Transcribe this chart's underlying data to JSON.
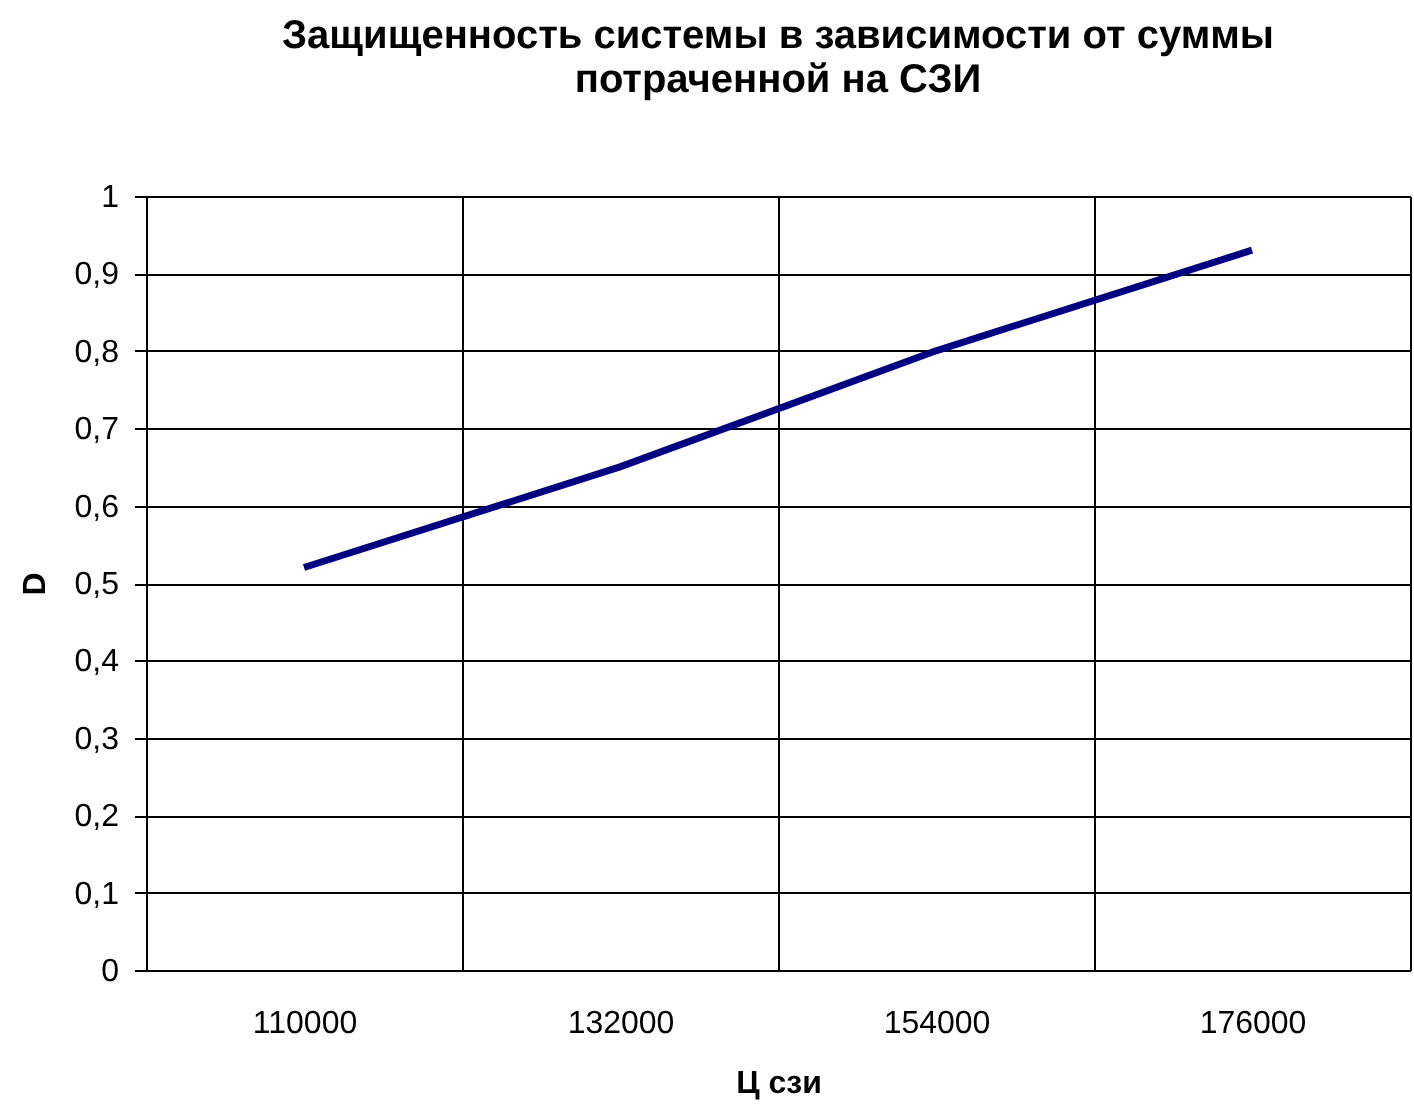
{
  "chart_data": {
    "type": "line",
    "title": [
      "Защищенность системы в зависимости от суммы",
      "потраченной на СЗИ"
    ],
    "xlabel": "Ц сзи",
    "ylabel": "D",
    "categories": [
      "110000",
      "132000",
      "154000",
      "176000"
    ],
    "series": [
      {
        "color": "#000080",
        "values": [
          0.52,
          0.65,
          0.8,
          0.93
        ]
      }
    ],
    "ylim": [
      0,
      1
    ],
    "yticks": [
      0,
      {
        "value": 0.1,
        "label": "0,1"
      },
      {
        "value": 0.2,
        "label": "0,2"
      },
      {
        "value": 0.3,
        "label": "0,3"
      },
      {
        "value": 0.4,
        "label": "0,4"
      },
      {
        "value": 0.5,
        "label": "0,5"
      },
      {
        "value": 0.6,
        "label": "0,6"
      },
      {
        "value": 0.7,
        "label": "0,7"
      },
      {
        "value": 0.8,
        "label": "0,8"
      },
      {
        "value": 0.9,
        "label": "0,9"
      },
      1
    ],
    "grid": true
  }
}
